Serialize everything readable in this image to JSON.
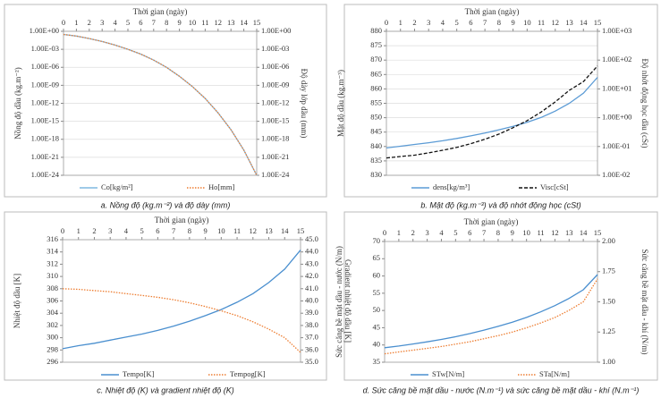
{
  "chart_data": [
    {
      "type": "line",
      "caption": "a. Nồng độ (kg.m⁻²) và độ dày (mm)",
      "xlabel": "Thời gian (ngày)",
      "ylabel": "Nồng độ dầu (kg.m⁻²)",
      "y2label": "Độ dày lớp dầu (mm)",
      "x": [
        0,
        1,
        2,
        3,
        4,
        5,
        6,
        7,
        8,
        9,
        10,
        11,
        12,
        13,
        14,
        15
      ],
      "xlim": [
        0,
        15
      ],
      "xticks": [
        0,
        1,
        2,
        3,
        4,
        5,
        6,
        7,
        8,
        9,
        10,
        11,
        12,
        13,
        14,
        15
      ],
      "ylog": true,
      "y2log": true,
      "ylim": [
        1e-24,
        1
      ],
      "y2lim": [
        1e-24,
        1
      ],
      "yticks": [
        {
          "value": 1,
          "label": "1.00E+00"
        },
        {
          "value": 0.001,
          "label": "1.00E-03"
        },
        {
          "value": 1e-06,
          "label": "1.00E-06"
        },
        {
          "value": 1e-09,
          "label": "1.00E-09"
        },
        {
          "value": 1e-12,
          "label": "1.00E-12"
        },
        {
          "value": 1e-15,
          "label": "1.00E-15"
        },
        {
          "value": 1e-18,
          "label": "1.00E-18"
        },
        {
          "value": 1e-21,
          "label": "1.00E-21"
        },
        {
          "value": 1e-24,
          "label": "1.00E-24"
        }
      ],
      "y2ticks": [
        {
          "value": 1,
          "label": "1.00E+00"
        },
        {
          "value": 0.001,
          "label": "1.00E-03"
        },
        {
          "value": 1e-06,
          "label": "1.00E-06"
        },
        {
          "value": 1e-09,
          "label": "1.00E-09"
        },
        {
          "value": 1e-12,
          "label": "1.00E-12"
        },
        {
          "value": 1e-15,
          "label": "1.00E-15"
        },
        {
          "value": 1e-18,
          "label": "1.00E-18"
        },
        {
          "value": 1e-21,
          "label": "1.00E-21"
        },
        {
          "value": 1e-24,
          "label": "1.00E-24"
        }
      ],
      "grid": true,
      "legend": "bottom",
      "series": [
        {
          "name": "Co[kg/m²]",
          "color": "#7fb8e0",
          "dash": "solid",
          "values": [
            0.3,
            0.16,
            0.063,
            0.02,
            0.005,
            0.001,
            0.00016,
            1.6e-05,
            1e-06,
            3.2e-08,
            6.3e-10,
            6.3e-12,
            2.5e-14,
            4e-17,
            1.6e-20,
            1e-24
          ]
        },
        {
          "name": "Ho[mm]",
          "color": "#ed7d31",
          "dash": "dot",
          "axis": "y2",
          "values": [
            0.3,
            0.16,
            0.063,
            0.02,
            0.005,
            0.001,
            0.00016,
            1.6e-05,
            1e-06,
            3.2e-08,
            6.3e-10,
            6.3e-12,
            2.5e-14,
            4e-17,
            1.6e-20,
            1e-24
          ]
        }
      ]
    },
    {
      "type": "line",
      "caption": "b. Mật độ (kg.m⁻³) và độ nhớt động học (cSt)",
      "xlabel": "Thời gian (ngày)",
      "ylabel": "Mật độ dầu (kg.m⁻³)",
      "y2label": "Độ nhớt động học dầu (cSt)",
      "x": [
        0,
        1,
        2,
        3,
        4,
        5,
        6,
        7,
        8,
        9,
        10,
        11,
        12,
        13,
        14,
        15
      ],
      "xlim": [
        0,
        15
      ],
      "xticks": [
        0,
        1,
        2,
        3,
        4,
        5,
        6,
        7,
        8,
        9,
        10,
        11,
        12,
        13,
        14,
        15
      ],
      "ylim": [
        830,
        880
      ],
      "yticks": [
        830,
        835,
        840,
        845,
        850,
        855,
        860,
        865,
        870,
        875,
        880
      ],
      "y2log": true,
      "y2lim": [
        0.01,
        1000
      ],
      "y2ticks": [
        {
          "value": 0.01,
          "label": "1.00E-02"
        },
        {
          "value": 0.1,
          "label": "1.00E-01"
        },
        {
          "value": 1,
          "label": "1.00E+00"
        },
        {
          "value": 10,
          "label": "1.00E+01"
        },
        {
          "value": 100,
          "label": "1.00E+02"
        },
        {
          "value": 1000,
          "label": "1.00E+03"
        }
      ],
      "grid": true,
      "legend": "bottom",
      "series": [
        {
          "name": "dens[kg/m³]",
          "color": "#5b9bd5",
          "dash": "solid",
          "values": [
            839.5,
            840.1,
            840.7,
            841.3,
            842,
            842.8,
            843.7,
            844.7,
            845.8,
            847,
            848.4,
            850.1,
            852.3,
            855,
            858.5,
            864
          ]
        },
        {
          "name": "Visc[cSt]",
          "color": "#111111",
          "dash": "dash",
          "axis": "y2",
          "values": [
            0.04,
            0.045,
            0.05,
            0.06,
            0.074,
            0.093,
            0.126,
            0.178,
            0.27,
            0.45,
            0.79,
            1.58,
            3.55,
            8.9,
            18,
            63
          ]
        }
      ]
    },
    {
      "type": "line",
      "caption": "c. Nhiệt độ (K) và gradient nhiệt độ (K)",
      "xlabel": "Thời gian (ngày)",
      "ylabel": "Nhiệt độ dầu [K]",
      "y2label": "Gradient nhiệt độ dầu [K]",
      "x": [
        0,
        1,
        2,
        3,
        4,
        5,
        6,
        7,
        8,
        9,
        10,
        11,
        12,
        13,
        14,
        15
      ],
      "xlim": [
        0,
        15
      ],
      "xticks": [
        0,
        1,
        2,
        3,
        4,
        5,
        6,
        7,
        8,
        9,
        10,
        11,
        12,
        13,
        14,
        15
      ],
      "ylim": [
        296,
        316
      ],
      "yticks": [
        296,
        298,
        300,
        302,
        304,
        306,
        308,
        310,
        312,
        314,
        316
      ],
      "y2lim": [
        35,
        45
      ],
      "y2ticks": [
        {
          "value": 35,
          "label": "35.0"
        },
        {
          "value": 36,
          "label": "36.0"
        },
        {
          "value": 37,
          "label": "37.0"
        },
        {
          "value": 38,
          "label": "38.0"
        },
        {
          "value": 39,
          "label": "39.0"
        },
        {
          "value": 40,
          "label": "40.0"
        },
        {
          "value": 41,
          "label": "41.0"
        },
        {
          "value": 42,
          "label": "42.0"
        },
        {
          "value": 43,
          "label": "43.0"
        },
        {
          "value": 44,
          "label": "44.0"
        },
        {
          "value": 45,
          "label": "45.0"
        }
      ],
      "grid": false,
      "legend": "bottom",
      "series": [
        {
          "name": "Tempo[K]",
          "color": "#4a8fcf",
          "dash": "solid",
          "values": [
            298.2,
            298.7,
            299.1,
            299.6,
            300.1,
            300.6,
            301.2,
            301.9,
            302.7,
            303.6,
            304.6,
            305.8,
            307.2,
            309,
            311.2,
            314.3
          ]
        },
        {
          "name": "Tempog[K]",
          "color": "#ed7d31",
          "dash": "dot",
          "axis": "y2",
          "values": [
            41,
            40.95,
            40.85,
            40.75,
            40.6,
            40.45,
            40.3,
            40.1,
            39.85,
            39.55,
            39.2,
            38.8,
            38.3,
            37.7,
            37,
            35.8
          ]
        }
      ]
    },
    {
      "type": "line",
      "caption": "d. Sức căng bề mặt dầu - nước (N.m⁻¹) và sức căng bề mặt dầu - khí (N.m⁻¹)",
      "xlabel": "Thời gian (ngày)",
      "ylabel": "Sức căng bề mặt dầu - nước (N/m)",
      "y2label": "Sức căng bề mặt dầu - khí (N/m)",
      "x": [
        0,
        1,
        2,
        3,
        4,
        5,
        6,
        7,
        8,
        9,
        10,
        11,
        12,
        13,
        14,
        15
      ],
      "xlim": [
        0,
        15
      ],
      "xticks": [
        0,
        1,
        2,
        3,
        4,
        5,
        6,
        7,
        8,
        9,
        10,
        11,
        12,
        13,
        14,
        15
      ],
      "ylim": [
        35,
        70
      ],
      "yticks": [
        35,
        40,
        45,
        50,
        55,
        60,
        65,
        70
      ],
      "y2lim": [
        1,
        2
      ],
      "y2ticks": [
        {
          "value": 1,
          "label": "1.00"
        },
        {
          "value": 1.25,
          "label": "1.25"
        },
        {
          "value": 1.5,
          "label": "1.50"
        },
        {
          "value": 1.75,
          "label": "1.75"
        },
        {
          "value": 2,
          "label": "2.00"
        }
      ],
      "grid": false,
      "legend": "bottom",
      "series": [
        {
          "name": "STw[N/m]",
          "color": "#4a8fcf",
          "dash": "solid",
          "values": [
            39.2,
            39.7,
            40.3,
            40.9,
            41.6,
            42.4,
            43.3,
            44.3,
            45.4,
            46.6,
            48,
            49.6,
            51.4,
            53.5,
            56,
            60.4
          ]
        },
        {
          "name": "STa[N/m]",
          "color": "#ed7d31",
          "dash": "dot",
          "axis": "y2",
          "values": [
            1.07,
            1.085,
            1.1,
            1.115,
            1.13,
            1.15,
            1.17,
            1.195,
            1.22,
            1.25,
            1.285,
            1.325,
            1.37,
            1.43,
            1.5,
            1.69
          ]
        }
      ]
    }
  ]
}
